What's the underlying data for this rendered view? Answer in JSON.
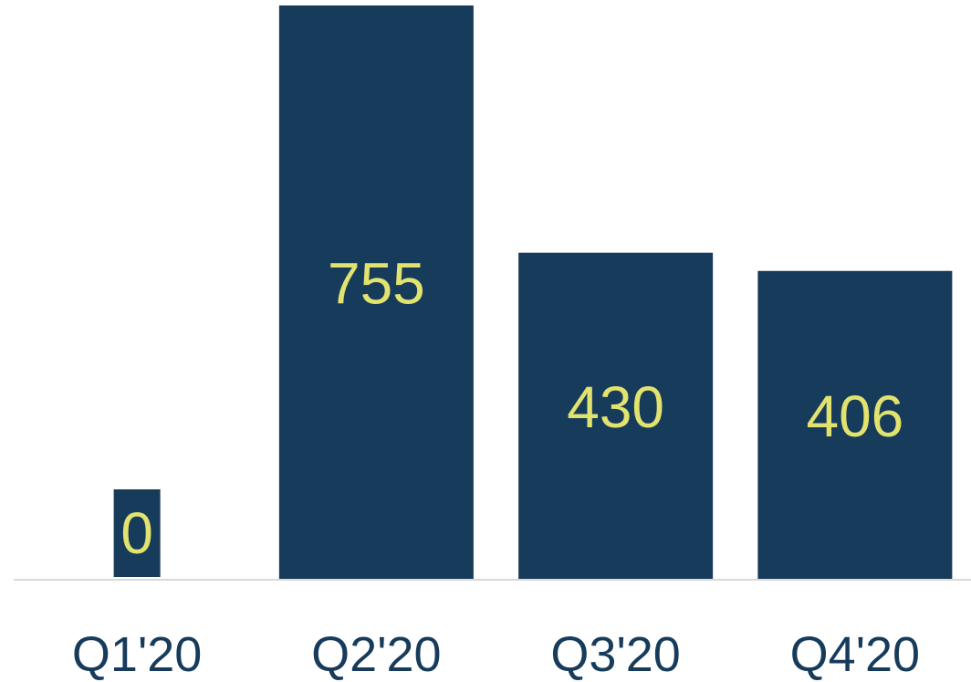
{
  "chart_data": {
    "type": "bar",
    "categories": [
      "Q1'20",
      "Q2'20",
      "Q3'20",
      "Q4'20"
    ],
    "values": [
      0,
      755,
      430,
      406
    ],
    "value_labels": [
      "0",
      "755",
      "430",
      "406"
    ],
    "ylim": [
      0,
      755
    ],
    "grid": false,
    "legend": "none",
    "colors": {
      "bar": "#173b5b",
      "value_label": "#e2e26f",
      "tick_label": "#173b5b",
      "baseline": "#d9d9d9"
    }
  }
}
